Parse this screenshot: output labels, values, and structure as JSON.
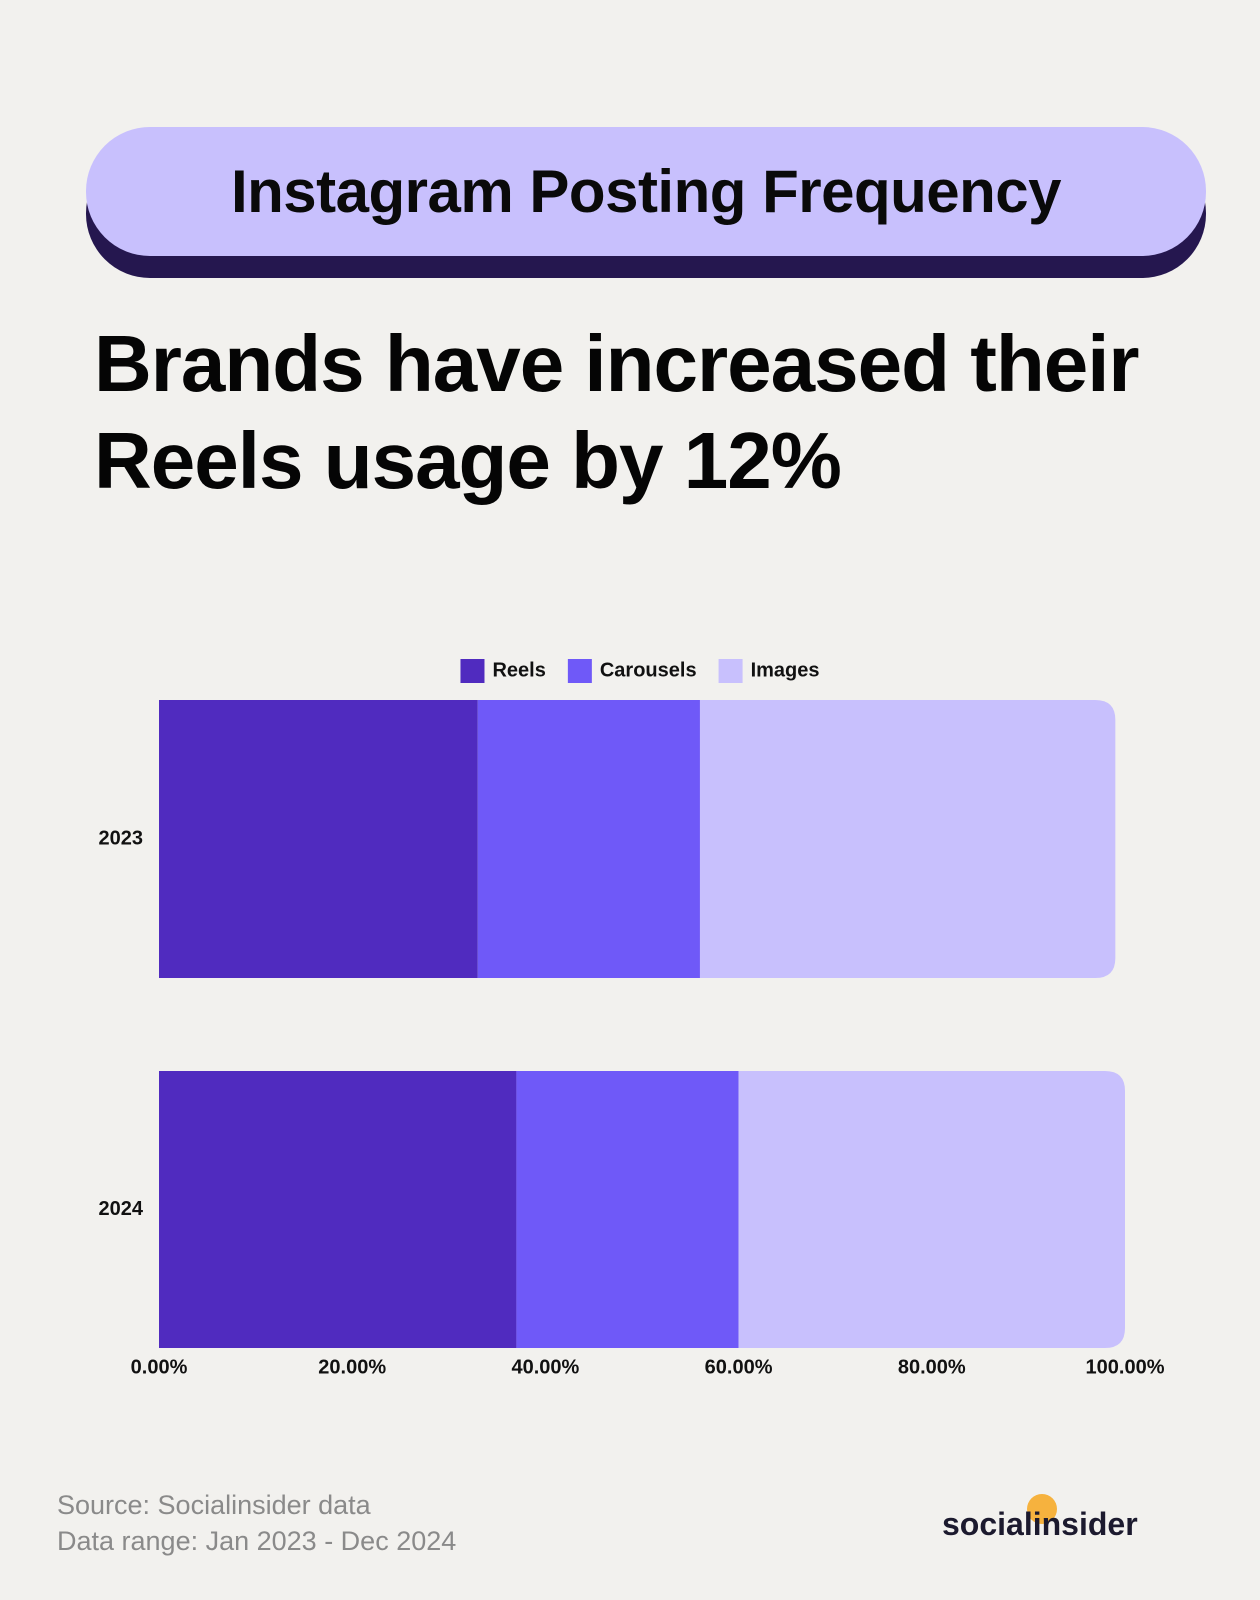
{
  "chart_data": {
    "type": "stacked-barh",
    "title": "Instagram Posting Frequency",
    "subtitle": "Brands have increased their Reels usage by 12%",
    "categories": [
      "2023",
      "2024"
    ],
    "series": [
      {
        "name": "Reels",
        "color": "#502bbf",
        "values": [
          33,
          37
        ]
      },
      {
        "name": "Carousels",
        "color": "#6f59f8",
        "values": [
          23,
          23
        ]
      },
      {
        "name": "Images",
        "color": "#c8c0fd",
        "values": [
          43,
          40
        ]
      }
    ],
    "xlim": [
      0,
      100
    ],
    "xticks": [
      {
        "value": 0,
        "label": "0.00%"
      },
      {
        "value": 20,
        "label": "20.00%"
      },
      {
        "value": 40,
        "label": "40.00%"
      },
      {
        "value": 60,
        "label": "60.00%"
      },
      {
        "value": 80,
        "label": "80.00%"
      },
      {
        "value": 100,
        "label": "100.00%"
      }
    ],
    "legend": "top",
    "source": "Source: Socialinsider data",
    "date_range": "Data range: Jan 2023 - Dec 2024",
    "logo": "socialinsider"
  }
}
